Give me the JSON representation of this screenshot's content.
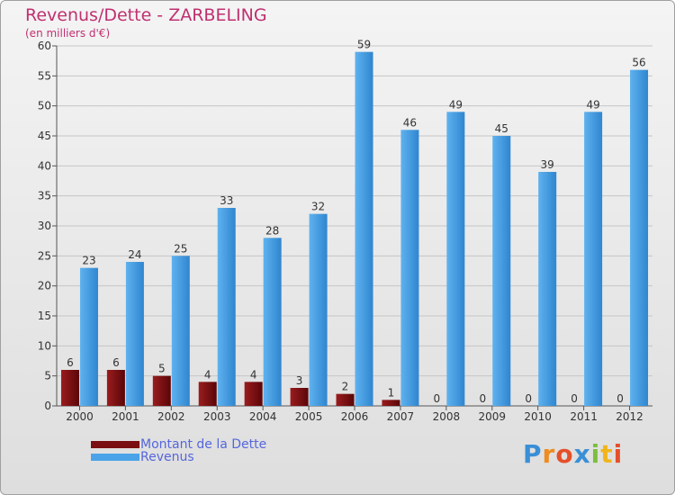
{
  "header": {
    "title": "Revenus/Dette - ZARBELING",
    "subtitle": "(en milliers d'€)"
  },
  "legend": {
    "items": [
      {
        "label": "Montant de la Dette",
        "color": "#7a0e10"
      },
      {
        "label": "Revenus",
        "color": "#4aa3e8"
      }
    ]
  },
  "brand": {
    "logo_text": "Proxiti"
  },
  "chart_data": {
    "type": "bar",
    "title": "Revenus/Dette - ZARBELING",
    "ylabel": "(en milliers d'€)",
    "xlabel": "",
    "categories": [
      "2000",
      "2001",
      "2002",
      "2003",
      "2004",
      "2005",
      "2006",
      "2007",
      "2008",
      "2009",
      "2010",
      "2011",
      "2012"
    ],
    "series": [
      {
        "name": "Montant de la Dette",
        "color": "#7a0e10",
        "values": [
          6,
          6,
          5,
          4,
          4,
          3,
          2,
          1,
          0,
          0,
          0,
          0,
          0
        ]
      },
      {
        "name": "Revenus",
        "color": "#4aa3e8",
        "values": [
          23,
          24,
          25,
          33,
          28,
          32,
          59,
          46,
          49,
          45,
          39,
          49,
          56
        ]
      }
    ],
    "ylim": [
      0,
      60
    ],
    "yticks": [
      0,
      5,
      10,
      15,
      20,
      25,
      30,
      35,
      40,
      45,
      50,
      55,
      60
    ],
    "grid": true,
    "legend_position": "bottom-left"
  }
}
